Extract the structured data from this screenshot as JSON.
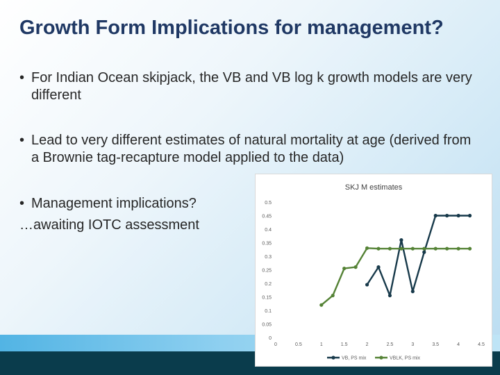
{
  "slide": {
    "title": "Growth Form Implications for management?",
    "bullets": [
      "For Indian Ocean skipjack, the VB and VB log k growth models are very different",
      "Lead to very different estimates of natural mortality at age (derived from a Brownie tag-recapture model applied to the data)",
      "Management implications?"
    ],
    "subline": "…awaiting IOTC assessment",
    "colors": {
      "title": "#1f3864",
      "band_dark": "#0a3c4c",
      "band_light": "#52b4e4"
    }
  },
  "chart_data": {
    "type": "line",
    "title": "SKJ M estimates",
    "xlabel": "",
    "ylabel": "",
    "xlim": [
      0,
      4.5
    ],
    "ylim": [
      0,
      0.5
    ],
    "x_ticks": [
      "0",
      "0.5",
      "1",
      "1.5",
      "2",
      "2.5",
      "3",
      "3.5",
      "4",
      "4.5"
    ],
    "y_ticks": [
      "0",
      "0.05",
      "0.1",
      "0.15",
      "0.2",
      "0.25",
      "0.3",
      "0.35",
      "0.4",
      "0.45",
      "0.5"
    ],
    "grid": false,
    "legend_position": "bottom",
    "series": [
      {
        "name": "VB, PS mix",
        "color": "#17394a",
        "points": [
          [
            2.0,
            0.195
          ],
          [
            2.25,
            0.26
          ],
          [
            2.5,
            0.155
          ],
          [
            2.75,
            0.36
          ],
          [
            3.0,
            0.17
          ],
          [
            3.25,
            0.315
          ],
          [
            3.5,
            0.45
          ],
          [
            3.75,
            0.45
          ],
          [
            4.0,
            0.45
          ],
          [
            4.25,
            0.45
          ]
        ]
      },
      {
        "name": "VBLK, PS mix",
        "color": "#548235",
        "points": [
          [
            1.0,
            0.12
          ],
          [
            1.25,
            0.155
          ],
          [
            1.5,
            0.255
          ],
          [
            1.75,
            0.26
          ],
          [
            2.0,
            0.33
          ],
          [
            2.25,
            0.328
          ],
          [
            2.5,
            0.328
          ],
          [
            2.75,
            0.328
          ],
          [
            3.0,
            0.328
          ],
          [
            3.25,
            0.328
          ],
          [
            3.5,
            0.328
          ],
          [
            3.75,
            0.328
          ],
          [
            4.0,
            0.328
          ],
          [
            4.25,
            0.328
          ]
        ]
      }
    ]
  }
}
